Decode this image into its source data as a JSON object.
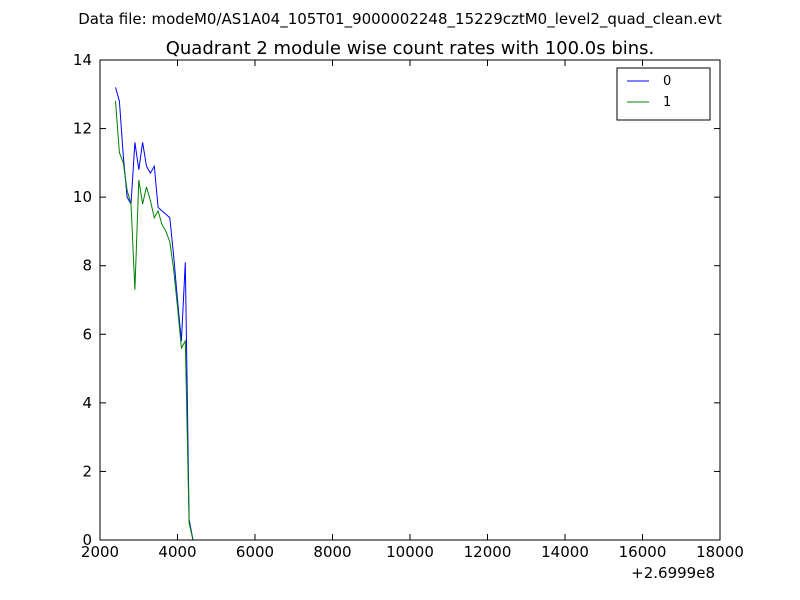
{
  "figure": {
    "suptitle": "Data file: modeM0/AS1A04_105T01_9000002248_15229cztM0_level2_quad_clean.evt"
  },
  "chart_data": {
    "type": "line",
    "title": "Quadrant 2 module wise count rates with 100.0s bins.",
    "xlabel": "",
    "ylabel": "",
    "x_offset_label": "+2.6999e8",
    "xlim": [
      2000,
      18000
    ],
    "ylim": [
      0,
      14
    ],
    "x_ticks": [
      2000,
      4000,
      6000,
      8000,
      10000,
      12000,
      14000,
      16000,
      18000
    ],
    "y_ticks": [
      0,
      2,
      4,
      6,
      8,
      10,
      12,
      14
    ],
    "x_tick_labels": [
      "2000",
      "4000",
      "6000",
      "8000",
      "10000",
      "12000",
      "14000",
      "16000",
      "18000"
    ],
    "y_tick_labels": [
      "0",
      "2",
      "4",
      "6",
      "8",
      "10",
      "12",
      "14"
    ],
    "grid": false,
    "legend_position": "top-right",
    "x": [
      2400,
      2500,
      2600,
      2700,
      2800,
      2900,
      3000,
      3100,
      3200,
      3300,
      3400,
      3500,
      3600,
      3700,
      3800,
      3900,
      4000,
      4100,
      4200,
      4300,
      4400,
      4500,
      4600,
      4700,
      4800,
      4900,
      5000,
      5100,
      5200,
      5300,
      5400,
      5500,
      5600,
      5700,
      5800,
      5900,
      6000,
      6100,
      6200,
      6300,
      6400,
      6500,
      6600,
      6700,
      6800,
      6900,
      7000,
      7100,
      7200,
      7300,
      7400,
      7500,
      7600,
      7700,
      7800,
      7900,
      8000,
      8100,
      8200,
      8300,
      8400,
      8500,
      8600,
      8700,
      8800,
      8900,
      9000,
      9100,
      9200,
      9300,
      9400,
      9500,
      9600,
      9700,
      9800,
      9900,
      10000,
      10100,
      10200,
      10300,
      10400,
      10500,
      10600,
      10700,
      10800,
      10900,
      11000,
      11100,
      11200,
      11300,
      11400,
      11500,
      11600,
      11700,
      11800,
      11900,
      12000,
      12100,
      12200,
      12300,
      12400,
      12500,
      12600,
      12700,
      12800,
      12900,
      13000,
      13100,
      13200,
      13300,
      13400,
      13500,
      13600,
      13700,
      13800,
      13900,
      14000,
      14100,
      14200,
      14300,
      14400,
      14500,
      14600,
      14700,
      14800,
      14900,
      15000,
      15100,
      15200,
      15300,
      15400,
      15500,
      15600,
      15700,
      15800,
      15900,
      16000
    ],
    "series": [
      {
        "name": "0",
        "color": "#0000ff",
        "dash": "solid",
        "values": [
          13.2,
          12.8,
          11.2,
          10.0,
          9.8,
          11.6,
          10.8,
          11.6,
          10.9,
          10.7,
          10.9,
          9.7,
          9.6,
          9.5,
          9.4,
          8.3,
          7.0,
          5.8,
          8.1,
          0.6,
          0.0,
          0.0,
          0.0,
          0.0,
          0.0,
          0.0,
          0.0,
          0.0,
          0.0,
          0.0,
          0.0,
          0.0,
          0.0,
          0.0,
          0.0,
          0.0,
          0.0,
          0.0,
          0.0,
          0.0,
          0.0,
          0.0,
          0.0,
          0.0,
          0.0,
          0.0,
          0.0,
          0.0,
          0.0,
          0.0,
          0.0,
          0.0,
          0.0,
          0.0,
          0.0,
          0.0,
          0.0,
          0.0,
          0.0,
          0.0,
          0.0,
          0.0,
          0.0,
          0.0,
          0.0,
          0.0,
          0.0,
          0.0,
          0.0,
          0.0,
          0.0,
          0.0,
          0.0,
          0.0,
          0.0,
          0.0,
          0.0,
          0.0,
          0.0,
          0.0,
          0.0,
          0.0,
          0.0,
          0.0,
          0.0,
          0.0,
          0.0,
          0.0,
          0.0,
          0.0,
          0.0,
          0.0,
          0.0,
          0.0,
          0.0,
          0.0,
          0.0,
          0.0,
          0.0,
          0.0,
          0.0,
          0.0,
          0.0,
          0.0,
          0.0,
          0.0,
          0.0,
          0.0,
          0.0,
          0.0,
          0.0,
          0.0,
          0.0,
          0.0,
          0.0,
          0.0,
          0.0,
          0.0,
          0.0,
          0.0,
          0.0,
          0.0,
          0.0,
          0.0,
          0.0,
          0.0,
          0.0,
          0.0,
          0.0,
          0.0,
          0.0,
          0.0,
          0.0,
          0.0,
          0.0,
          0.0,
          0.0
        ]
      },
      {
        "name": "1",
        "color": "#008000",
        "dash": "solid",
        "values": [
          12.8,
          11.3,
          11.0,
          10.2,
          9.8,
          7.3,
          10.5,
          9.8,
          10.3,
          9.9,
          9.4,
          9.6,
          9.2,
          9.0,
          8.7,
          7.9,
          6.8,
          5.6,
          5.8,
          0.5,
          0.0,
          0.0,
          0.0,
          0.0,
          0.0,
          0.0,
          0.0,
          0.0,
          0.0,
          0.0,
          0.0,
          0.0,
          0.0,
          0.0,
          0.0,
          0.0,
          0.0,
          0.0,
          0.0,
          0.0,
          0.0,
          0.0,
          0.0,
          0.0,
          0.0,
          0.0,
          0.0,
          0.0,
          0.0,
          0.0,
          0.0,
          0.0,
          0.0,
          0.0,
          0.0,
          0.0,
          0.0,
          0.0,
          0.0,
          0.0,
          0.0,
          0.0,
          0.0,
          0.0,
          0.0,
          0.0,
          0.0,
          0.0,
          0.0,
          0.0,
          0.0,
          0.0,
          0.0,
          0.0,
          0.0,
          0.0,
          0.0,
          0.0,
          0.0,
          0.0,
          0.0,
          0.0,
          0.0,
          0.0,
          0.0,
          0.0,
          0.0,
          0.0,
          0.0,
          0.0,
          0.0,
          0.0,
          0.0,
          0.0,
          0.0,
          0.0,
          0.0,
          0.0,
          0.0,
          0.0,
          0.0,
          0.0,
          0.0,
          0.0,
          0.0,
          0.0,
          0.0,
          0.0,
          0.0,
          0.0,
          0.0,
          0.0,
          0.0,
          0.0,
          0.0,
          0.0,
          0.0,
          0.0,
          0.0,
          0.0,
          0.0,
          0.0,
          0.0,
          0.0,
          0.0,
          0.0,
          0.0,
          0.0,
          0.0,
          0.0,
          0.0,
          0.0,
          0.0,
          0.0,
          0.0,
          0.0,
          0.0
        ]
      }
    ]
  }
}
